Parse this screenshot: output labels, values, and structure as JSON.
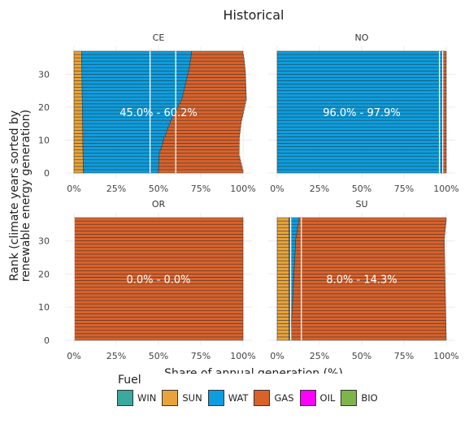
{
  "chart_data": {
    "type": "bar",
    "orientation": "horizontal",
    "stacked": true,
    "title": "Historical",
    "xlabel": "Share of annual generation (%)",
    "ylabel": "Rank (climate years sorted by\nrenewable energy generation)",
    "x_ticks": [
      "0%",
      "25%",
      "50%",
      "75%",
      "100%"
    ],
    "y_ticks": [
      "0",
      "10",
      "20",
      "30"
    ],
    "xlim": [
      0,
      100
    ],
    "ylim": [
      0,
      37
    ],
    "n_bars": 37,
    "legend": {
      "title": "Fuel",
      "position": "bottom",
      "items": [
        {
          "name": "WIN",
          "color": "#3aa99f"
        },
        {
          "name": "SUN",
          "color": "#e8a33a"
        },
        {
          "name": "WAT",
          "color": "#0b9ee0"
        },
        {
          "name": "GAS",
          "color": "#d9622b"
        },
        {
          "name": "OIL",
          "color": "#ff00ff"
        },
        {
          "name": "BIO",
          "color": "#7db54a"
        }
      ]
    },
    "grid": true,
    "facets": [
      {
        "name": "CE",
        "range_label": "45.0% - 60.2%",
        "range_lines": [
          45.0,
          60.2
        ],
        "series": [
          {
            "name": "SUN",
            "profile": [
              [
                0,
                5.5
              ],
              [
                36,
                4.5
              ]
            ]
          },
          {
            "name": "WAT",
            "profile": [
              [
                0,
                44.5
              ],
              [
                5,
                45.0
              ],
              [
                10,
                48.0
              ],
              [
                15,
                52.0
              ],
              [
                18,
                55.0
              ],
              [
                22,
                59.0
              ],
              [
                26,
                61.0
              ],
              [
                30,
                63.0
              ],
              [
                34,
                64.5
              ],
              [
                36,
                65.0
              ]
            ]
          },
          {
            "name": "GAS",
            "profile": [
              [
                0,
                50.0
              ],
              [
                36,
                30.5
              ]
            ]
          }
        ]
      },
      {
        "name": "NO",
        "range_label": "96.0% - 97.9%",
        "range_lines": [
          96.0,
          97.9
        ],
        "series": [
          {
            "name": "WAT",
            "profile": [
              [
                0,
                97.5
              ],
              [
                36,
                98.0
              ]
            ]
          },
          {
            "name": "GAS",
            "profile": [
              [
                0,
                2.5
              ],
              [
                36,
                2.0
              ]
            ]
          }
        ]
      },
      {
        "name": "OR",
        "range_label": "0.0% - 0.0%",
        "range_lines": [
          0.0,
          0.0
        ],
        "series": [
          {
            "name": "GAS",
            "profile": [
              [
                0,
                100
              ],
              [
                36,
                100
              ]
            ]
          }
        ]
      },
      {
        "name": "SU",
        "range_label": "8.0% - 14.3%",
        "range_lines": [
          8.0,
          14.3
        ],
        "series": [
          {
            "name": "SUN",
            "profile": [
              [
                0,
                7.0
              ],
              [
                36,
                7.0
              ]
            ]
          },
          {
            "name": "WAT",
            "profile": [
              [
                0,
                1.0
              ],
              [
                10,
                2.0
              ],
              [
                20,
                3.0
              ],
              [
                30,
                4.0
              ],
              [
                36,
                6.0
              ]
            ]
          },
          {
            "name": "GAS",
            "profile": [
              [
                0,
                92.0
              ],
              [
                36,
                87.0
              ]
            ]
          }
        ]
      }
    ]
  }
}
